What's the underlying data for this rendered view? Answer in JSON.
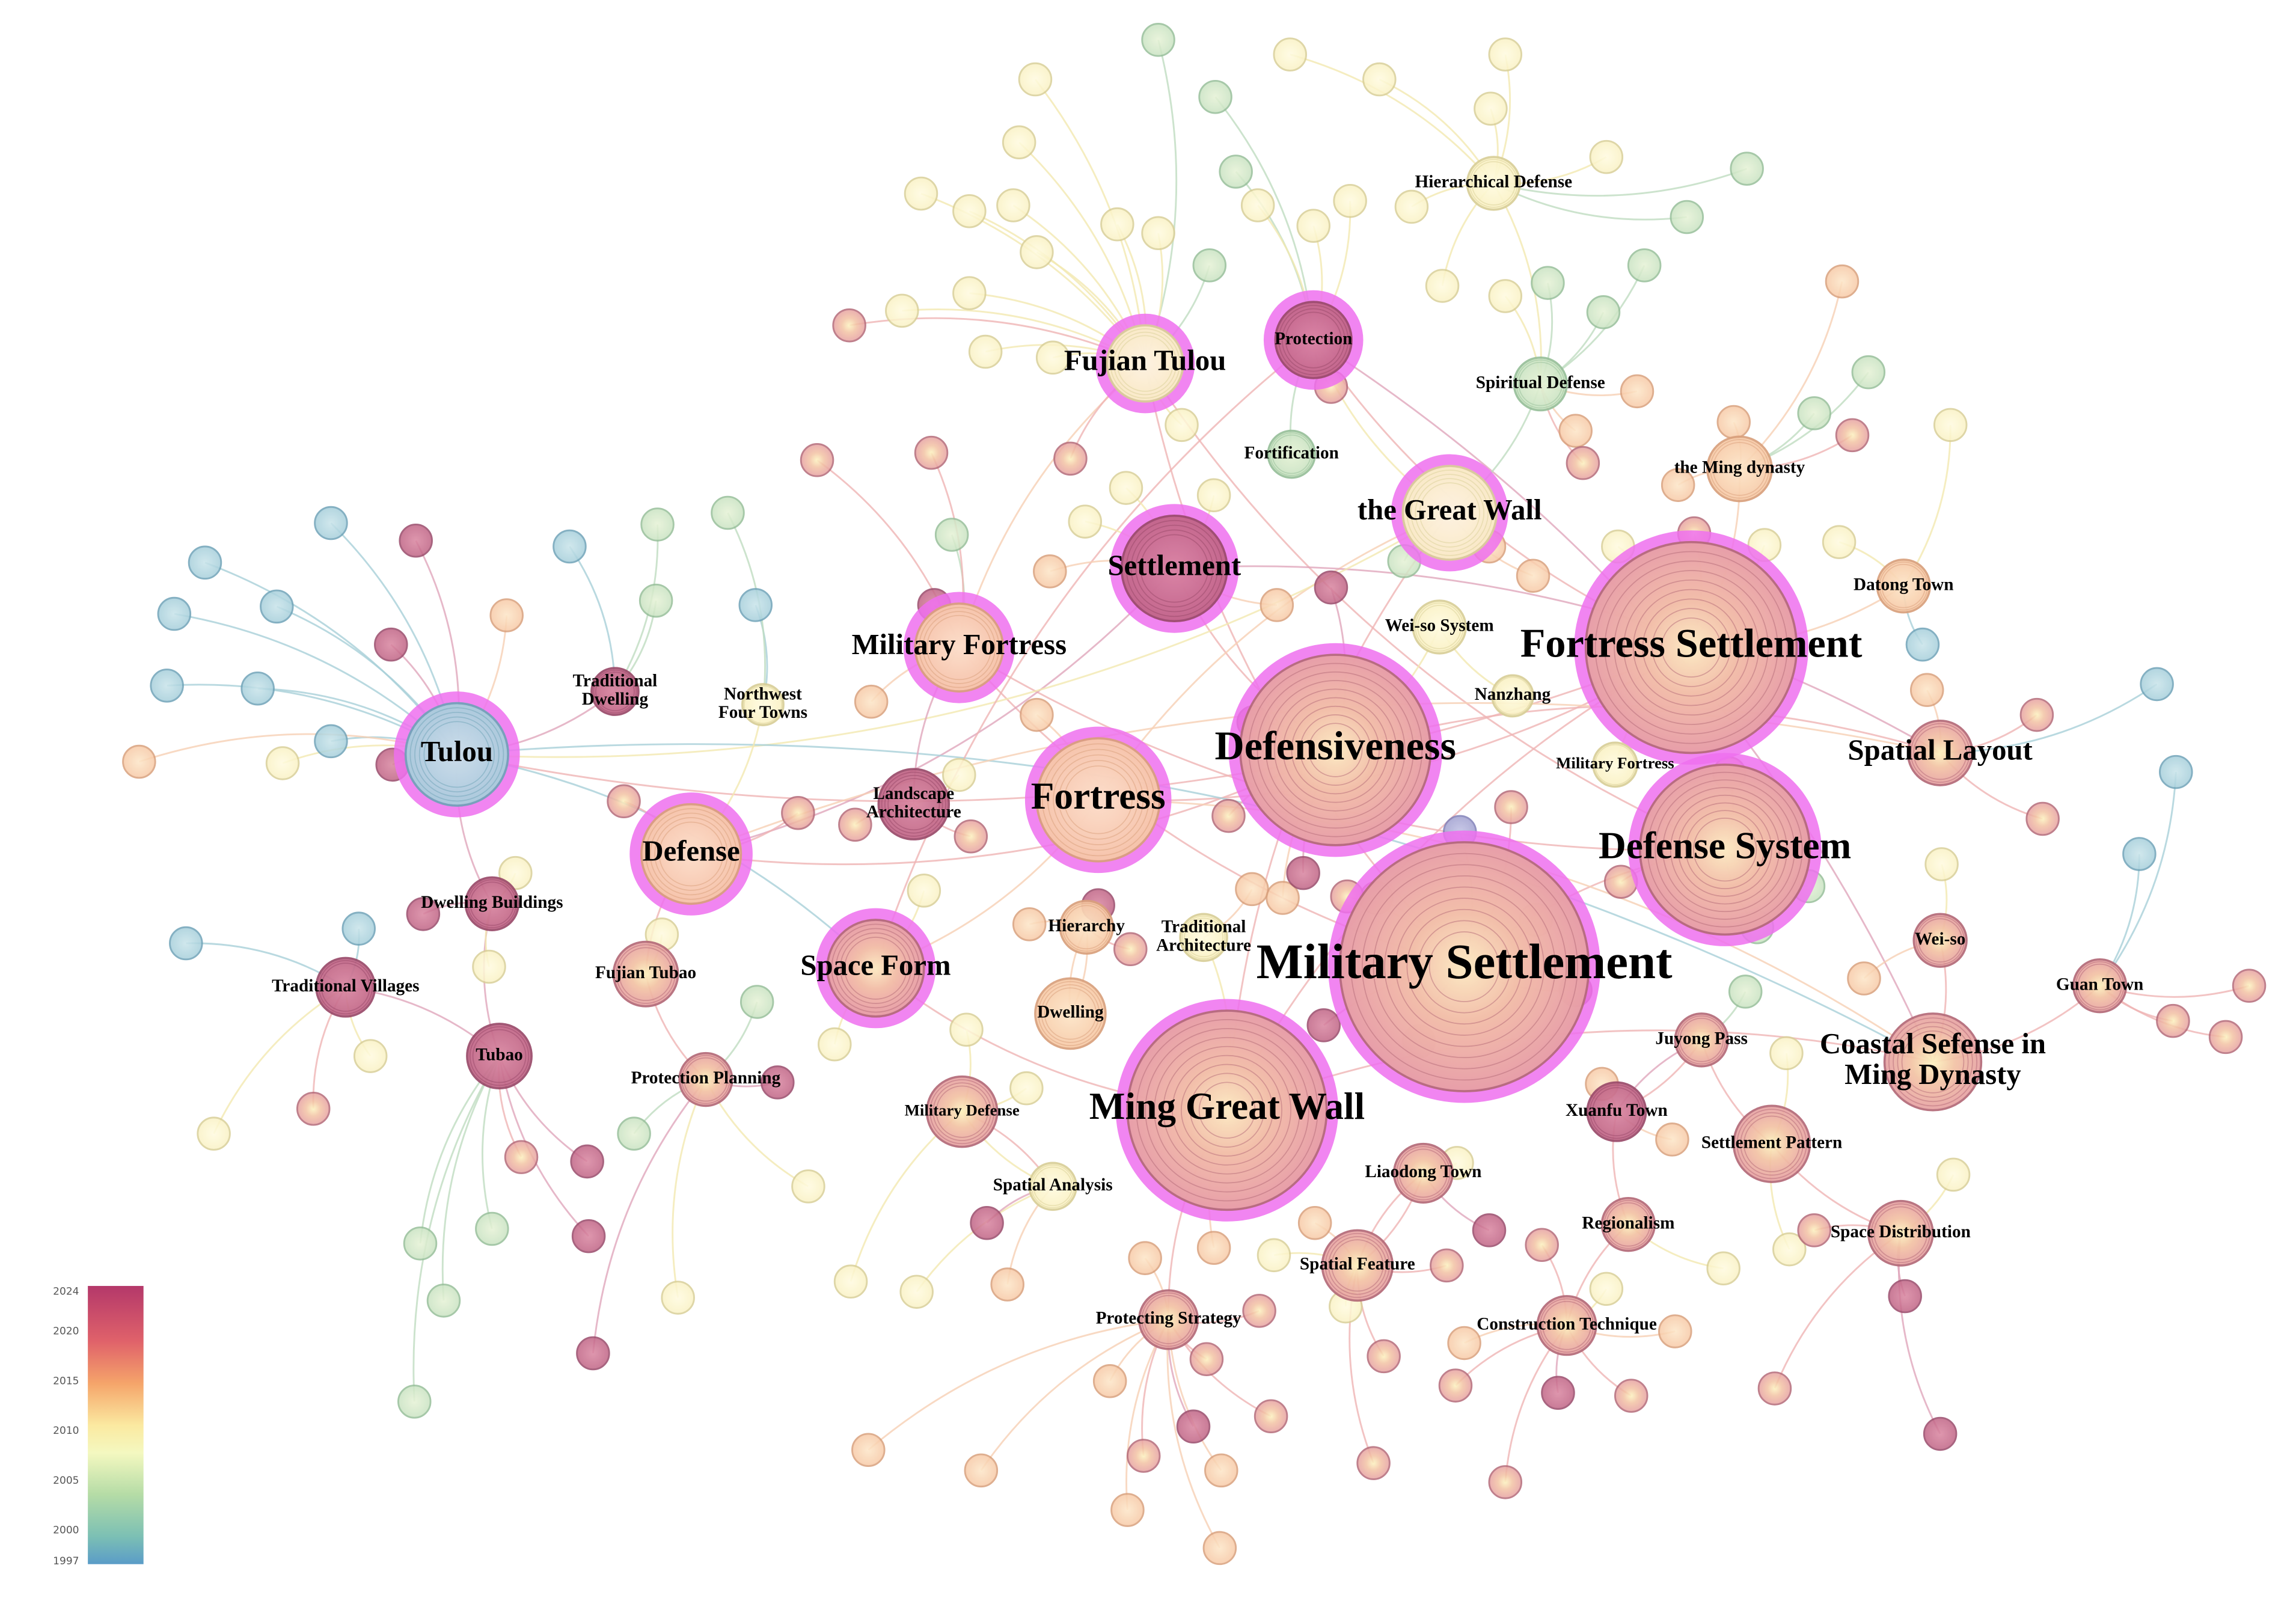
{
  "nodes": [
    {
      "label": "Military Settlement"
    },
    {
      "label": "Ming Great Wall"
    },
    {
      "label": "Defensiveness"
    },
    {
      "label": "Fortress Settlement"
    },
    {
      "label": "Defense System"
    },
    {
      "label": "Fortress"
    },
    {
      "label": "Settlement"
    },
    {
      "label": "the Great Wall"
    },
    {
      "label": "Military Fortress"
    },
    {
      "label": "Tulou"
    },
    {
      "label": "Defense"
    },
    {
      "label": "Space Form"
    },
    {
      "label": "Fujian Tulou"
    },
    {
      "label": "Protection"
    },
    {
      "label": "Spatial Layout"
    },
    {
      "label": [
        "Coastal Sefense in",
        "Ming Dynasty"
      ]
    },
    {
      "label": "Hierarchical Defense"
    },
    {
      "label": "Spiritual Defense"
    },
    {
      "label": "Fortification"
    },
    {
      "label": "the Ming dynasty"
    },
    {
      "label": "Datong Town"
    },
    {
      "label": "Wei-so System"
    },
    {
      "label": "Nanzhang"
    },
    {
      "label": "Military Fortress"
    },
    {
      "label": [
        "Traditional",
        "Dwelling"
      ]
    },
    {
      "label": [
        "Northwest",
        "Four Towns"
      ]
    },
    {
      "label": [
        "Landscape",
        "Architecture"
      ]
    },
    {
      "label": "Dwelling Buildings"
    },
    {
      "label": "Hierarchy"
    },
    {
      "label": [
        "Traditional",
        "Architecture"
      ]
    },
    {
      "label": "Traditional Villages"
    },
    {
      "label": "Fujian Tubao"
    },
    {
      "label": "Tubao"
    },
    {
      "label": "Protection Planning"
    },
    {
      "label": "Dwelling"
    },
    {
      "label": "Military Defense"
    },
    {
      "label": "Spatial Analysis"
    },
    {
      "label": "Liaodong Town"
    },
    {
      "label": "Juyong Pass"
    },
    {
      "label": "Xuanfu Town"
    },
    {
      "label": "Settlement Pattern"
    },
    {
      "label": "Wei-so"
    },
    {
      "label": "Guan Town"
    },
    {
      "label": "Regionalism"
    },
    {
      "label": "Space Distribution"
    },
    {
      "label": "Spatial Feature"
    },
    {
      "label": "Protecting Strategy"
    },
    {
      "label": "Construction Technique"
    }
  ],
  "legend": {
    "labels": [
      "2024",
      "2020",
      "2015",
      "2010",
      "2005",
      "2000",
      "1997"
    ]
  }
}
